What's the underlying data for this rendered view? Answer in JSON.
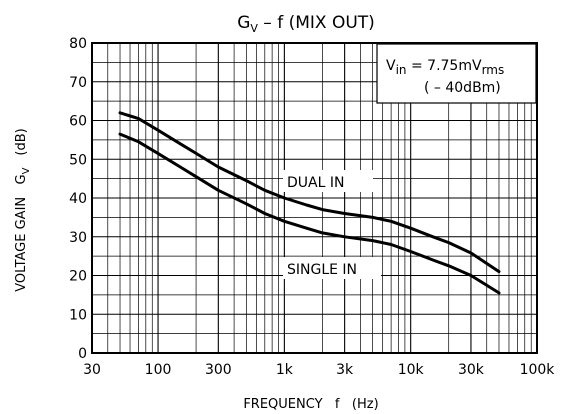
{
  "chart_data": {
    "type": "line",
    "x_scale": "log",
    "xlim": [
      30,
      100000
    ],
    "ylim": [
      0,
      80
    ],
    "grid": true,
    "title": {
      "g": "G",
      "g_sub": "V",
      "rest": " – f (MIX OUT)"
    },
    "xlabel": "FREQUENCY   f   (Hz)",
    "ylabel": {
      "main": "VOLTAGE GAIN   G",
      "sub": "V",
      "unit": "(dB)"
    },
    "x_ticks": [
      {
        "value": 30,
        "label": "30"
      },
      {
        "value": 100,
        "label": "100"
      },
      {
        "value": 300,
        "label": "300"
      },
      {
        "value": 1000,
        "label": "1k"
      },
      {
        "value": 3000,
        "label": "3k"
      },
      {
        "value": 10000,
        "label": "10k"
      },
      {
        "value": 30000,
        "label": "30k"
      },
      {
        "value": 100000,
        "label": "100k"
      }
    ],
    "y_ticks": [
      0,
      10,
      20,
      30,
      40,
      50,
      60,
      70,
      80
    ],
    "series": [
      {
        "name": "DUAL IN",
        "x": [
          50,
          70,
          100,
          150,
          200,
          300,
          500,
          700,
          1000,
          1500,
          2000,
          3000,
          5000,
          7000,
          10000,
          15000,
          20000,
          30000,
          50000
        ],
        "y": [
          62,
          60.5,
          57.5,
          54,
          51.5,
          48,
          44.5,
          42,
          40,
          38.2,
          37,
          36,
          35,
          34,
          32.2,
          30,
          28.5,
          25.8,
          21
        ]
      },
      {
        "name": "SINGLE IN",
        "x": [
          50,
          70,
          100,
          150,
          200,
          300,
          500,
          700,
          1000,
          1500,
          2000,
          3000,
          5000,
          7000,
          10000,
          15000,
          20000,
          30000,
          50000
        ],
        "y": [
          56.5,
          54.5,
          51.5,
          48,
          45.5,
          42,
          38.5,
          36,
          34,
          32.2,
          31,
          30,
          29,
          28,
          26.2,
          24,
          22.5,
          20,
          15.5
        ]
      }
    ],
    "annotations": {
      "dual_label": "DUAL IN",
      "single_label": "SINGLE IN",
      "vin": {
        "v": "V",
        "v_sub": "in",
        "eq": " = 7.75mV",
        "unit_sub": "rms",
        "db": "( – 40dBm)"
      }
    }
  }
}
